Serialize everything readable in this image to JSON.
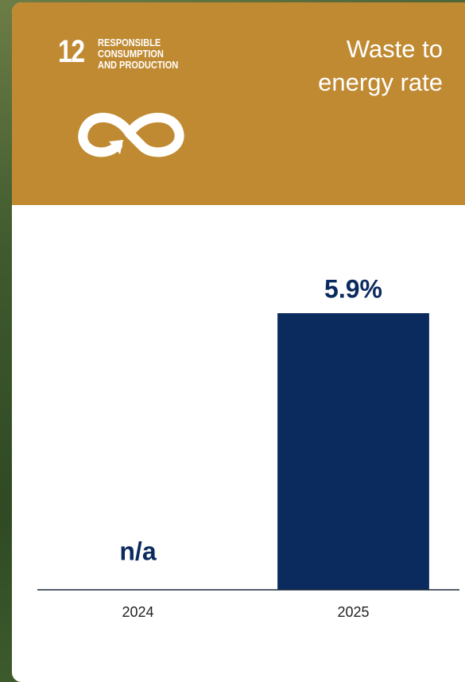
{
  "badge": {
    "number": "12",
    "lines": [
      "RESPONSIBLE",
      "CONSUMPTION",
      "AND PRODUCTION"
    ]
  },
  "chart_data": {
    "type": "bar",
    "title": "Waste to energy rate",
    "categories": [
      "2024",
      "2025"
    ],
    "values": [
      null,
      5.9
    ],
    "value_labels": [
      "n/a",
      "5.9%"
    ],
    "color": "#0b2a5e"
  }
}
